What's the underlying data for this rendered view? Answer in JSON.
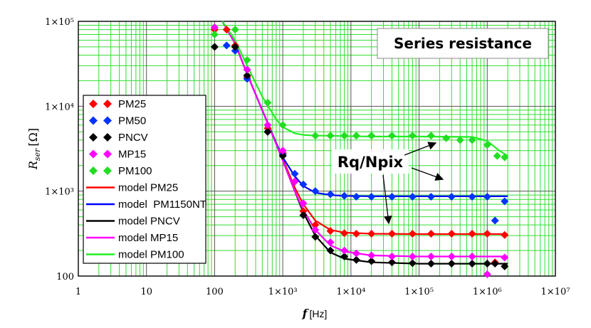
{
  "chart_data": {
    "type": "scatter",
    "scale": "log-log",
    "title": "Series resistance",
    "xlabel": "f [Hz]",
    "xlabel_main": "f",
    "xlabel_unit": "[Hz]",
    "ylabel": "R_ser [Ω]",
    "ylabel_main": "R",
    "ylabel_sub": "ser",
    "ylabel_unit": "[Ω]",
    "xlim": [
      1,
      10000000
    ],
    "ylim": [
      100,
      100000
    ],
    "x_ticks": [
      {
        "value": 1,
        "label": "1"
      },
      {
        "value": 10,
        "label": "10"
      },
      {
        "value": 100,
        "label": "100"
      },
      {
        "value": 1000,
        "label": "1×10³"
      },
      {
        "value": 10000,
        "label": "1×10⁴"
      },
      {
        "value": 100000,
        "label": "1×10⁵"
      },
      {
        "value": 1000000,
        "label": "1×10⁶"
      },
      {
        "value": 10000000,
        "label": "1×10⁷"
      }
    ],
    "y_ticks": [
      {
        "value": 100,
        "label": "100"
      },
      {
        "value": 1000,
        "label": "1×10³"
      },
      {
        "value": 10000,
        "label": "1×10⁴"
      },
      {
        "value": 100000,
        "label": "1×10⁵"
      }
    ],
    "annotation": "Rq/Npix",
    "series": [
      {
        "name": "PM25",
        "kind": "points",
        "color": "#ff0000",
        "x": [
          100,
          150,
          200,
          300,
          600,
          1000,
          1500,
          2000,
          3000,
          5000,
          8000,
          12000,
          20000,
          40000,
          80000,
          150000,
          300000,
          600000,
          1000000,
          1300000,
          1800000
        ],
        "y": [
          80000,
          80000,
          52000,
          22000,
          5500,
          2800,
          1300,
          580,
          400,
          340,
          320,
          315,
          315,
          315,
          315,
          315,
          315,
          315,
          315,
          145,
          305
        ]
      },
      {
        "name": "PM50",
        "kind": "points",
        "color": "#0033ff",
        "x": [
          150,
          200,
          300,
          600,
          1000,
          1500,
          2000,
          3000,
          5000,
          8000,
          12000,
          20000,
          40000,
          80000,
          150000,
          300000,
          600000,
          1000000,
          1300000,
          1800000
        ],
        "y": [
          52000,
          45000,
          21000,
          5000,
          2700,
          1600,
          1200,
          1000,
          920,
          880,
          860,
          860,
          860,
          860,
          860,
          860,
          860,
          860,
          450,
          760
        ]
      },
      {
        "name": "PNCV",
        "kind": "points",
        "color": "#000000",
        "x": [
          100,
          200,
          300,
          600,
          1000,
          1500,
          2000,
          3000,
          5000,
          8000,
          12000,
          20000,
          40000,
          80000,
          150000,
          300000,
          600000,
          1000000,
          1300000,
          1800000
        ],
        "y": [
          50000,
          50000,
          23000,
          5000,
          2600,
          1300,
          520,
          290,
          200,
          170,
          155,
          150,
          145,
          142,
          140,
          140,
          140,
          140,
          140,
          130
        ]
      },
      {
        "name": "MP15",
        "kind": "points",
        "color": "#ff00ff",
        "x": [
          100,
          300,
          600,
          1000,
          1500,
          2000,
          3000,
          5000,
          8000,
          12000,
          20000,
          40000,
          80000,
          150000,
          300000,
          600000,
          1000000,
          1800000
        ],
        "y": [
          85000,
          27000,
          6000,
          3000,
          1300,
          720,
          350,
          250,
          200,
          185,
          175,
          170,
          170,
          170,
          170,
          170,
          105,
          165
        ]
      },
      {
        "name": "PM100",
        "kind": "points",
        "color": "#22dd22",
        "x": [
          100,
          200,
          300,
          600,
          1000,
          3000,
          5000,
          8000,
          12000,
          20000,
          40000,
          80000,
          150000,
          250000,
          400000,
          600000,
          1000000,
          1400000,
          1800000
        ],
        "y": [
          70000,
          80000,
          35000,
          11000,
          6000,
          4500,
          4500,
          4500,
          4500,
          4500,
          4500,
          4500,
          4500,
          4200,
          4000,
          4000,
          3500,
          2600,
          2500
        ]
      },
      {
        "name": "model PM25",
        "kind": "line",
        "color": "#ff0000",
        "x": [
          130,
          200,
          300,
          500,
          800,
          1000,
          1500,
          2000,
          3000,
          5000,
          8000,
          20000,
          100000,
          1000000,
          2000000
        ],
        "y": [
          100000,
          55000,
          24000,
          9000,
          3700,
          2400,
          1100,
          700,
          450,
          350,
          325,
          315,
          312,
          312,
          312
        ]
      },
      {
        "name": "model  PM1150NT",
        "kind": "line",
        "color": "#0000ff",
        "x": [
          130,
          200,
          300,
          500,
          800,
          1000,
          1500,
          2000,
          3000,
          5000,
          8000,
          20000,
          100000,
          1000000,
          2000000
        ],
        "y": [
          100000,
          55000,
          24000,
          9000,
          3700,
          2500,
          1500,
          1150,
          960,
          900,
          880,
          870,
          870,
          870,
          870
        ]
      },
      {
        "name": "model PNCV",
        "kind": "line",
        "color": "#000000",
        "x": [
          130,
          200,
          300,
          500,
          800,
          1000,
          1500,
          2000,
          3000,
          5000,
          8000,
          20000,
          100000,
          1000000,
          2000000
        ],
        "y": [
          100000,
          55000,
          24000,
          9000,
          3600,
          2300,
          1000,
          560,
          300,
          190,
          160,
          145,
          140,
          140,
          140
        ]
      },
      {
        "name": "model MP15",
        "kind": "line",
        "color": "#ff00ff",
        "x": [
          130,
          200,
          300,
          500,
          800,
          1000,
          1500,
          2000,
          3000,
          5000,
          8000,
          20000,
          100000,
          1000000,
          2000000
        ],
        "y": [
          100000,
          55000,
          24000,
          9000,
          3600,
          2300,
          1000,
          600,
          350,
          230,
          195,
          175,
          170,
          170,
          170
        ]
      },
      {
        "name": "model PM100",
        "kind": "line",
        "color": "#22ee22",
        "x": [
          130,
          200,
          300,
          500,
          800,
          1000,
          1500,
          2000,
          3000,
          5000,
          8000,
          20000,
          100000,
          600000,
          1000000,
          1500000,
          2000000
        ],
        "y": [
          100000,
          60000,
          30000,
          13000,
          7000,
          5700,
          4800,
          4600,
          4500,
          4500,
          4450,
          4400,
          4400,
          4350,
          3900,
          3000,
          2600
        ]
      }
    ]
  }
}
